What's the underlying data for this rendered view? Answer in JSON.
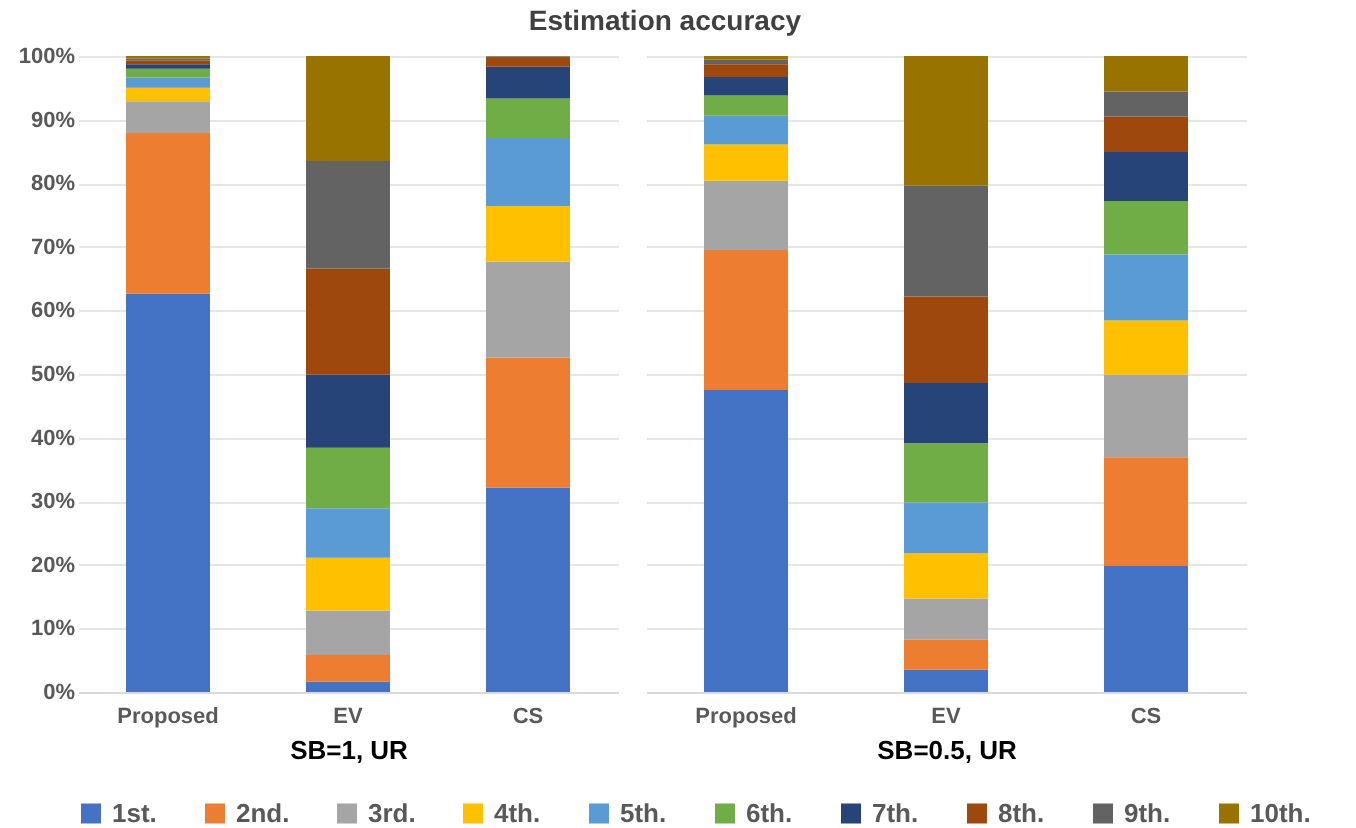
{
  "chart_data": [
    {
      "type": "bar",
      "stacked": true,
      "title": "Estimation accuracy",
      "xlabel": "SB=1, UR",
      "categories": [
        "Proposed",
        "EV",
        "CS"
      ],
      "ylim": [
        0,
        100
      ],
      "yticks": [
        {
          "value": 0,
          "label": "0%"
        },
        {
          "value": 10,
          "label": "10%"
        },
        {
          "value": 20,
          "label": "20%"
        },
        {
          "value": 30,
          "label": "30%"
        },
        {
          "value": 40,
          "label": "40%"
        },
        {
          "value": 50,
          "label": "50%"
        },
        {
          "value": 60,
          "label": "60%"
        },
        {
          "value": 70,
          "label": "70%"
        },
        {
          "value": 80,
          "label": "80%"
        },
        {
          "value": 90,
          "label": "90%"
        },
        {
          "value": 100,
          "label": "100%"
        }
      ],
      "grid": "y",
      "legend": "bottom",
      "series": [
        {
          "name": "1st.",
          "color": "#4472c4",
          "values": [
            62.6,
            1.6,
            32.1
          ]
        },
        {
          "name": "2nd.",
          "color": "#ed7d31",
          "values": [
            25.3,
            4.2,
            20.5
          ]
        },
        {
          "name": "3rd.",
          "color": "#a5a5a5",
          "values": [
            5.0,
            7.0,
            15.1
          ]
        },
        {
          "name": "4th.",
          "color": "#ffc000",
          "values": [
            2.1,
            8.3,
            8.7
          ]
        },
        {
          "name": "5th.",
          "color": "#5b9bd5",
          "values": [
            1.6,
            7.8,
            10.7
          ]
        },
        {
          "name": "6th.",
          "color": "#70ad47",
          "values": [
            1.4,
            9.5,
            6.2
          ]
        },
        {
          "name": "7th.",
          "color": "#264478",
          "values": [
            0.7,
            11.5,
            5.0
          ]
        },
        {
          "name": "8th.",
          "color": "#9e480e",
          "values": [
            0.6,
            16.7,
            1.4
          ]
        },
        {
          "name": "9th.",
          "color": "#636363",
          "values": [
            0.3,
            16.9,
            0.2
          ]
        },
        {
          "name": "10th.",
          "color": "#997300",
          "values": [
            0.4,
            16.5,
            0.1
          ]
        }
      ]
    },
    {
      "type": "bar",
      "stacked": true,
      "xlabel": "SB=0.5, UR",
      "categories": [
        "Proposed",
        "EV",
        "CS"
      ],
      "ylim": [
        0,
        100
      ],
      "yticks": [
        0,
        10,
        20,
        30,
        40,
        50,
        60,
        70,
        80,
        90,
        100
      ],
      "grid": "y",
      "tick_labels": "x",
      "series": [
        {
          "name": "1st.",
          "color": "#4472c4",
          "values": [
            47.5,
            3.5,
            19.8
          ]
        },
        {
          "name": "2nd.",
          "color": "#ed7d31",
          "values": [
            22.0,
            4.7,
            17.1
          ]
        },
        {
          "name": "3rd.",
          "color": "#a5a5a5",
          "values": [
            10.9,
            6.5,
            13.0
          ]
        },
        {
          "name": "4th.",
          "color": "#ffc000",
          "values": [
            5.7,
            7.1,
            8.5
          ]
        },
        {
          "name": "5th.",
          "color": "#5b9bd5",
          "values": [
            4.5,
            8.0,
            10.4
          ]
        },
        {
          "name": "6th.",
          "color": "#70ad47",
          "values": [
            3.2,
            9.3,
            8.4
          ]
        },
        {
          "name": "7th.",
          "color": "#264478",
          "values": [
            2.9,
            9.5,
            7.7
          ]
        },
        {
          "name": "8th.",
          "color": "#9e480e",
          "values": [
            2.0,
            13.6,
            5.6
          ]
        },
        {
          "name": "9th.",
          "color": "#636363",
          "values": [
            0.7,
            17.4,
            3.9
          ]
        },
        {
          "name": "10th.",
          "color": "#997300",
          "values": [
            0.6,
            20.4,
            5.6
          ]
        }
      ]
    }
  ]
}
